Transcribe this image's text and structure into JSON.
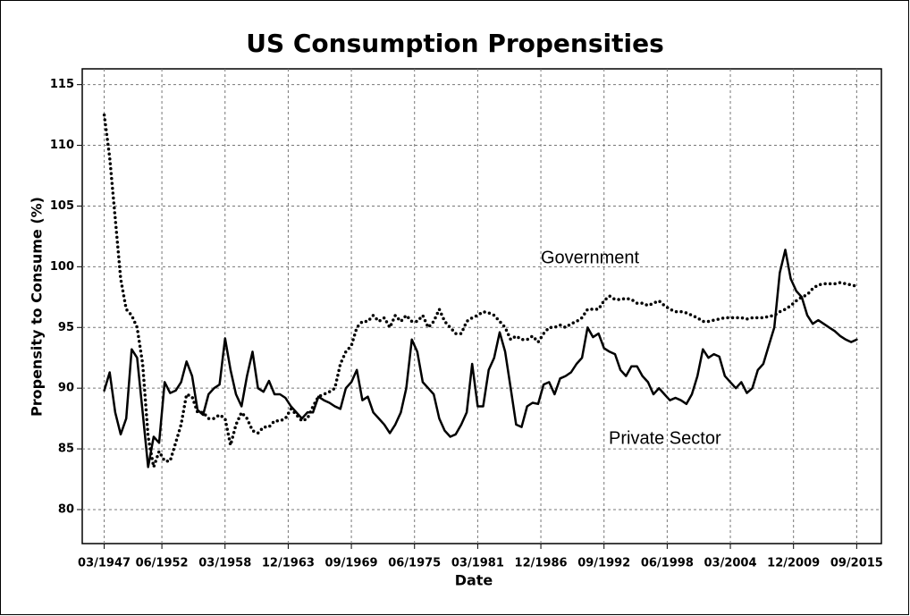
{
  "chart_data": {
    "type": "line",
    "title": "US Consumption Propensities",
    "x_label": "Date",
    "y_label": "Propensity to Consume (%)",
    "x": [
      "03/1947",
      "09/1947",
      "03/1948",
      "09/1948",
      "03/1949",
      "09/1949",
      "03/1950",
      "09/1950",
      "03/1951",
      "09/1951",
      "03/1952",
      "09/1952",
      "03/1953",
      "09/1953",
      "03/1954",
      "09/1954",
      "03/1955",
      "09/1955",
      "03/1956",
      "09/1956",
      "03/1957",
      "09/1957",
      "03/1958",
      "09/1958",
      "03/1959",
      "09/1959",
      "03/1960",
      "09/1960",
      "03/1961",
      "09/1961",
      "03/1962",
      "09/1962",
      "03/1963",
      "09/1963",
      "03/1964",
      "09/1964",
      "03/1965",
      "09/1965",
      "03/1966",
      "09/1966",
      "03/1967",
      "09/1967",
      "03/1968",
      "09/1968",
      "03/1969",
      "09/1969",
      "03/1970",
      "09/1970",
      "03/1971",
      "09/1971",
      "03/1972",
      "09/1972",
      "03/1973",
      "09/1973",
      "03/1974",
      "09/1974",
      "03/1975",
      "09/1975",
      "03/1976",
      "09/1976",
      "03/1977",
      "09/1977",
      "03/1978",
      "09/1978",
      "03/1979",
      "09/1979",
      "03/1980",
      "09/1980",
      "03/1981",
      "09/1981",
      "03/1982",
      "09/1982",
      "03/1983",
      "09/1983",
      "03/1984",
      "09/1984",
      "03/1985",
      "09/1985",
      "03/1986",
      "09/1986",
      "03/1987",
      "09/1987",
      "03/1988",
      "09/1988",
      "03/1989",
      "09/1989",
      "03/1990",
      "09/1990",
      "03/1991",
      "09/1991",
      "03/1992",
      "09/1992",
      "03/1993",
      "09/1993",
      "03/1994",
      "09/1994",
      "03/1995",
      "09/1995",
      "03/1996",
      "09/1996",
      "03/1997",
      "09/1997",
      "03/1998",
      "09/1998",
      "03/1999",
      "09/1999",
      "03/2000",
      "09/2000",
      "03/2001",
      "09/2001",
      "03/2002",
      "09/2002",
      "03/2003",
      "09/2003",
      "03/2004",
      "09/2004",
      "03/2005",
      "09/2005",
      "03/2006",
      "09/2006",
      "03/2007",
      "09/2007",
      "03/2008",
      "09/2008",
      "03/2009",
      "09/2009",
      "03/2010",
      "09/2010",
      "03/2011",
      "09/2011",
      "03/2012",
      "09/2012",
      "03/2013",
      "09/2013",
      "03/2014",
      "09/2014",
      "03/2015",
      "09/2015"
    ],
    "series": [
      {
        "name": "Private Sector",
        "color": "#000000",
        "dash": "solid",
        "values": [
          89.8,
          91.3,
          88,
          86.2,
          87.5,
          93.2,
          92.5,
          88,
          83.5,
          86,
          85.5,
          90.5,
          89.6,
          89.8,
          90.5,
          92.2,
          91,
          88.2,
          87.8,
          89.5,
          90,
          90.3,
          94.1,
          91.5,
          89.5,
          88.5,
          91,
          93,
          90,
          89.7,
          90.6,
          89.5,
          89.5,
          89.2,
          88.5,
          88,
          87.5,
          88,
          88,
          89.3,
          89,
          88.8,
          88.5,
          88.3,
          90,
          90.5,
          91.5,
          89,
          89.3,
          88,
          87.5,
          87,
          86.3,
          87,
          88,
          90,
          94,
          93,
          90.5,
          90,
          89.5,
          87.5,
          86.5,
          86,
          86.2,
          87,
          88,
          92,
          88.5,
          88.5,
          91.5,
          92.5,
          94.6,
          93,
          90,
          87,
          86.8,
          88.5,
          88.8,
          88.7,
          90.3,
          90.5,
          89.5,
          90.8,
          91,
          91.3,
          92,
          92.5,
          95,
          94.2,
          94.5,
          93.3,
          93,
          92.8,
          91.5,
          91,
          91.8,
          91.8,
          91,
          90.5,
          89.5,
          90,
          89.5,
          89,
          89.2,
          89,
          88.7,
          89.5,
          91,
          93.2,
          92.5,
          92.8,
          92.6,
          91,
          90.5,
          90,
          90.5,
          89.6,
          90,
          91.5,
          92,
          93.5,
          95,
          99.5,
          101.4,
          99,
          98,
          97.5,
          96,
          95.3,
          95.6,
          95.3,
          95,
          94.7,
          94.3,
          94,
          93.8,
          94
        ]
      },
      {
        "name": "Government",
        "color": "#000000",
        "dash": "dotted",
        "values": [
          112.5,
          109,
          104,
          99,
          96.5,
          96,
          95,
          92,
          86,
          83.5,
          84.8,
          84,
          84,
          85.5,
          87,
          89.5,
          89.3,
          88,
          88,
          87.5,
          87.5,
          87.8,
          87.5,
          85.3,
          87,
          88,
          87.5,
          86.5,
          86.3,
          86.8,
          86.8,
          87.3,
          87.3,
          87.5,
          88.3,
          87.8,
          87.3,
          87.5,
          88.5,
          89.3,
          89.5,
          89.7,
          90,
          92,
          93,
          93.5,
          95,
          95.5,
          95.5,
          96,
          95.5,
          95.8,
          95,
          96,
          95.5,
          96,
          95.5,
          95.5,
          96,
          95,
          95.5,
          96.5,
          95.5,
          95,
          94.5,
          94.5,
          95.5,
          95.8,
          96,
          96.3,
          96.2,
          96,
          95.5,
          95,
          94,
          94.3,
          94,
          94,
          94.3,
          93.8,
          94.5,
          95,
          95,
          95.2,
          95,
          95.3,
          95.5,
          95.8,
          96.5,
          96.5,
          96.5,
          97.2,
          97.6,
          97.3,
          97.3,
          97.4,
          97.3,
          97,
          97,
          96.8,
          97,
          97.2,
          96.8,
          96.5,
          96.3,
          96.3,
          96.2,
          96,
          95.8,
          95.5,
          95.5,
          95.6,
          95.7,
          95.8,
          95.8,
          95.8,
          95.8,
          95.7,
          95.8,
          95.8,
          95.8,
          95.9,
          96,
          96.3,
          96.5,
          96.8,
          97.2,
          97.5,
          97.7,
          98.2,
          98.5,
          98.6,
          98.6,
          98.6,
          98.7,
          98.6,
          98.5,
          98.4
        ]
      }
    ],
    "annotations": [
      "Government",
      "Private Sector"
    ],
    "xlim": [
      "03/1945",
      "12/2017"
    ],
    "xticks": [
      "03/1947",
      "06/1952",
      "03/1958",
      "12/1963",
      "09/1969",
      "06/1975",
      "03/1981",
      "12/1986",
      "09/1992",
      "06/1998",
      "03/2004",
      "12/2009",
      "09/2015"
    ],
    "ylim": [
      77.2,
      116.3
    ],
    "yticks": [
      80,
      85,
      90,
      95,
      100,
      105,
      110,
      115
    ],
    "grid": true
  }
}
